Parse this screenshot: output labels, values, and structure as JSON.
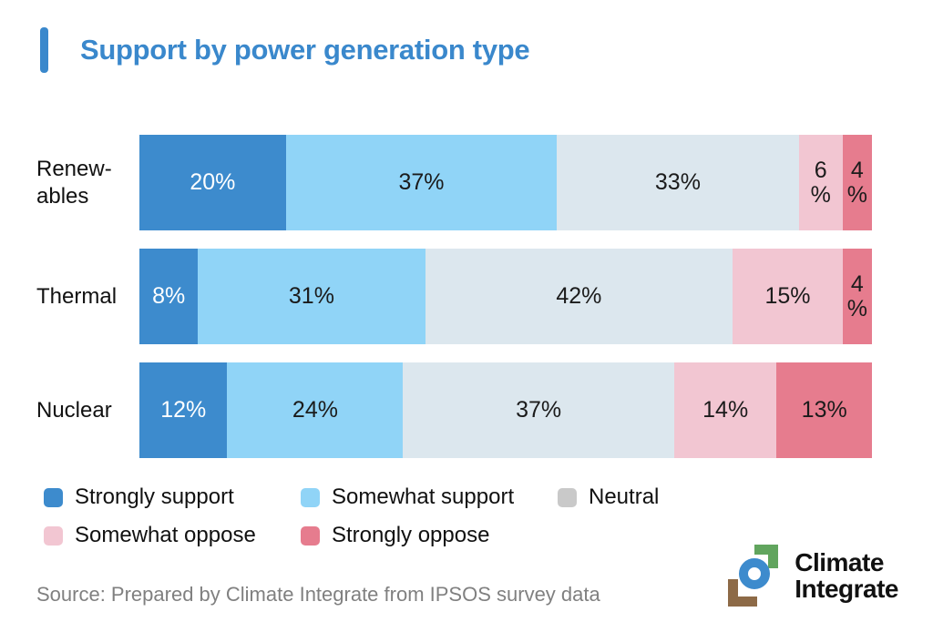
{
  "title": "Support by power generation type",
  "colors": {
    "title": "#3a88cc",
    "accent_bar": "#3a88cc",
    "strongly_support": "#3d8bcd",
    "somewhat_support": "#90d4f7",
    "neutral_bar": "#dce7ee",
    "somewhat_oppose": "#f2c6d2",
    "strongly_oppose": "#e67c8e",
    "neutral_legend_swatch": "#c9c9c9",
    "source_text": "#808080",
    "logo_green": "#61a55e",
    "logo_blue": "#3d8bcd",
    "logo_brown": "#8d6a47"
  },
  "chart_data": {
    "type": "bar",
    "orientation": "horizontal",
    "stacked": true,
    "unit": "%",
    "xlim": [
      0,
      100
    ],
    "grid": false,
    "categories": [
      "Renew-\nables",
      "Thermal",
      "Nuclear"
    ],
    "series": [
      {
        "name": "Strongly support",
        "color": "#3d8bcd",
        "label_color": "#ffffff",
        "values": [
          20,
          8,
          12
        ]
      },
      {
        "name": "Somewhat support",
        "color": "#90d4f7",
        "label_color": "#1b1b1b",
        "values": [
          37,
          31,
          24
        ]
      },
      {
        "name": "Neutral",
        "color": "#dce7ee",
        "label_color": "#1b1b1b",
        "values": [
          33,
          42,
          37
        ]
      },
      {
        "name": "Somewhat oppose",
        "color": "#f2c6d2",
        "label_color": "#1b1b1b",
        "values": [
          6,
          15,
          14
        ]
      },
      {
        "name": "Strongly oppose",
        "color": "#e67c8e",
        "label_color": "#1b1b1b",
        "values": [
          4,
          4,
          13
        ]
      }
    ],
    "segment_labels": [
      [
        "20%",
        "37%",
        "33%",
        "6\n%",
        "4\n%"
      ],
      [
        "8%",
        "31%",
        "42%",
        "15%",
        "4\n%"
      ],
      [
        "12%",
        "24%",
        "37%",
        "14%",
        "13%"
      ]
    ]
  },
  "legend": {
    "items": [
      {
        "label": "Strongly support",
        "color": "#3d8bcd"
      },
      {
        "label": "Somewhat support",
        "color": "#90d4f7"
      },
      {
        "label": "Neutral",
        "color": "#c9c9c9"
      },
      {
        "label": "Somewhat oppose",
        "color": "#f2c6d2"
      },
      {
        "label": "Strongly oppose",
        "color": "#e67c8e"
      }
    ]
  },
  "source": "Source: Prepared by Climate Integrate from IPSOS survey data",
  "logo": {
    "line1": "Climate",
    "line2": "Integrate"
  }
}
